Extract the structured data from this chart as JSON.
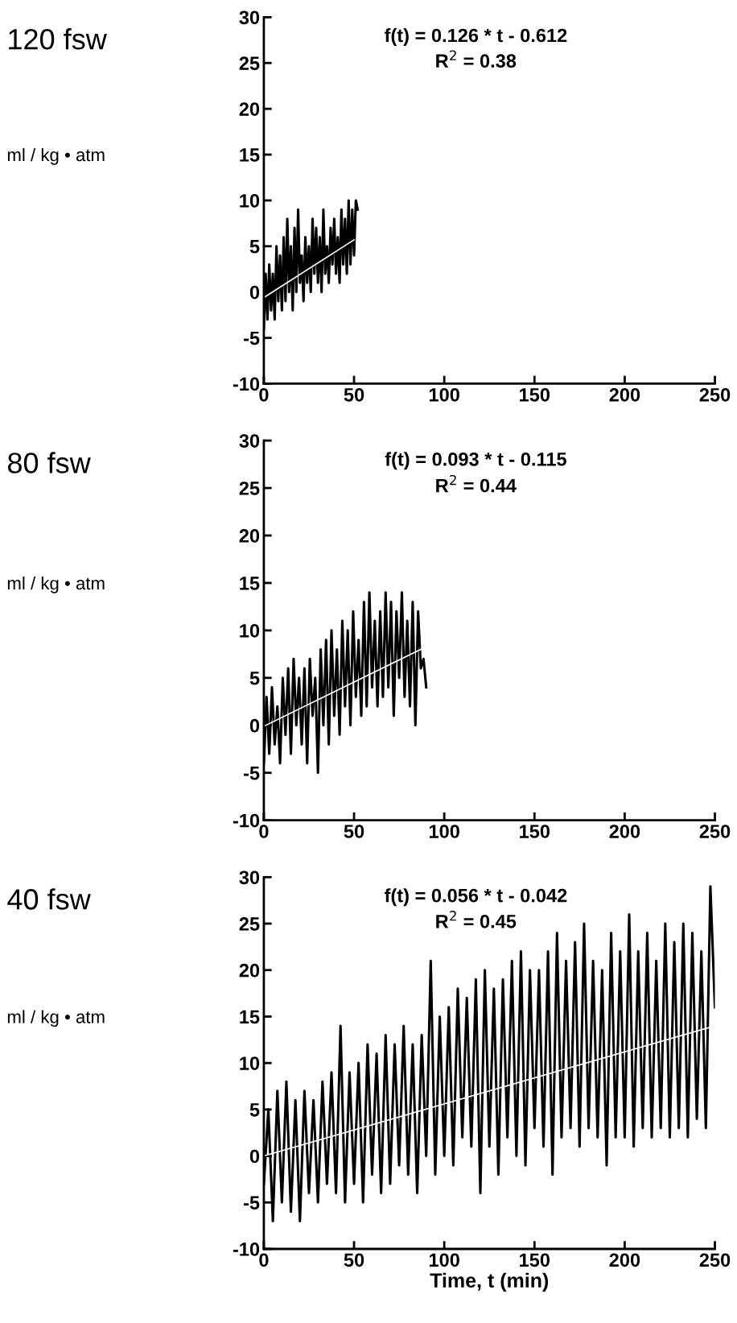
{
  "chart_data": [
    {
      "type": "line",
      "title": "120 fsw",
      "ylabel": "ml / kg • atm",
      "annotations": [
        "f(t) = 0.126 * t - 0.612",
        "R$^{2}$ = 0.38"
      ],
      "xlim": [
        0,
        250
      ],
      "ylim": [
        -10,
        30
      ],
      "xticks": [
        0,
        50,
        100,
        150,
        200,
        250
      ],
      "yticks": [
        -10,
        -5,
        0,
        5,
        10,
        15,
        20,
        25,
        30
      ],
      "grid": false,
      "legend": false,
      "series": [
        {
          "color": "#000000",
          "x": [
            0,
            1,
            2,
            3,
            4,
            5,
            6,
            7,
            8,
            9,
            10,
            11,
            12,
            13,
            14,
            15,
            16,
            17,
            18,
            19,
            20,
            21,
            22,
            23,
            24,
            25,
            26,
            27,
            28,
            29,
            30,
            31,
            32,
            33,
            34,
            35,
            36,
            37,
            38,
            39,
            40,
            41,
            42,
            43,
            44,
            45,
            46,
            47,
            48,
            49,
            50,
            51,
            52
          ],
          "values": [
            -4,
            2,
            -3,
            3,
            -2,
            2,
            -3,
            5,
            -1,
            4,
            -2,
            6,
            -1,
            8,
            0,
            5,
            -2,
            7,
            0,
            9,
            1,
            4,
            -1,
            6,
            1,
            5,
            0,
            8,
            2,
            7,
            1,
            6,
            0,
            9,
            2,
            5,
            1,
            7,
            3,
            8,
            2,
            6,
            1,
            9,
            3,
            8,
            2,
            10,
            3,
            9,
            4,
            10,
            9
          ]
        },
        {
          "color": "#ffffff",
          "x": [
            0,
            50
          ],
          "values": [
            -0.6,
            5.7
          ]
        }
      ]
    },
    {
      "type": "line",
      "title": "80 fsw",
      "ylabel": "ml / kg • atm",
      "annotations": [
        "f(t) = 0.093 * t - 0.115",
        "R$^{2}$ = 0.44"
      ],
      "xlim": [
        0,
        250
      ],
      "ylim": [
        -10,
        30
      ],
      "xticks": [
        0,
        50,
        100,
        150,
        200,
        250
      ],
      "yticks": [
        -10,
        -5,
        0,
        5,
        10,
        15,
        20,
        25,
        30
      ],
      "grid": false,
      "legend": false,
      "series": [
        {
          "color": "#000000",
          "x": [
            0,
            1.5,
            3,
            4.5,
            6,
            7.5,
            9,
            10.5,
            12,
            13.5,
            15,
            16.5,
            18,
            19.5,
            21,
            22.5,
            24,
            25.5,
            27,
            28.5,
            30,
            31.5,
            33,
            34.5,
            36,
            37.5,
            39,
            40.5,
            42,
            43.5,
            45,
            46.5,
            48,
            49.5,
            51,
            52.5,
            54,
            55.5,
            57,
            58.5,
            60,
            61.5,
            63,
            64.5,
            66,
            67.5,
            69,
            70.5,
            72,
            73.5,
            75,
            76.5,
            78,
            79.5,
            81,
            82.5,
            84,
            85.5,
            87,
            88.5,
            90
          ],
          "values": [
            -4,
            3,
            -3,
            4,
            -2,
            2,
            -4,
            5,
            -1,
            6,
            -3,
            7,
            0,
            5,
            -2,
            6,
            -4,
            7,
            1,
            5,
            -5,
            8,
            0,
            9,
            -2,
            10,
            1,
            8,
            -1,
            11,
            2,
            10,
            0,
            12,
            3,
            9,
            1,
            13,
            2,
            14,
            4,
            11,
            2,
            12,
            3,
            14,
            4,
            13,
            1,
            12,
            5,
            14,
            3,
            11,
            2,
            13,
            0,
            12,
            6,
            7,
            4
          ]
        },
        {
          "color": "#ffffff",
          "x": [
            0,
            88
          ],
          "values": [
            -0.1,
            8.1
          ]
        }
      ]
    },
    {
      "type": "line",
      "title": "40 fsw",
      "ylabel": "ml / kg • atm",
      "xlabel": "Time, t (min)",
      "annotations": [
        "f(t) = 0.056 * t - 0.042",
        "R$^{2}$ = 0.45"
      ],
      "xlim": [
        0,
        250
      ],
      "ylim": [
        -10,
        30
      ],
      "xticks": [
        0,
        50,
        100,
        150,
        200,
        250
      ],
      "yticks": [
        -10,
        -5,
        0,
        5,
        10,
        15,
        20,
        25,
        30
      ],
      "grid": false,
      "legend": false,
      "series": [
        {
          "color": "#000000",
          "x": [
            0,
            2.5,
            5,
            7.5,
            10,
            12.5,
            15,
            17.5,
            20,
            22.5,
            25,
            27.5,
            30,
            32.5,
            35,
            37.5,
            40,
            42.5,
            45,
            47.5,
            50,
            52.5,
            55,
            57.5,
            60,
            62.5,
            65,
            67.5,
            70,
            72.5,
            75,
            77.5,
            80,
            82.5,
            85,
            87.5,
            90,
            92.5,
            95,
            97.5,
            100,
            102.5,
            105,
            107.5,
            110,
            112.5,
            115,
            117.5,
            120,
            122.5,
            125,
            127.5,
            130,
            132.5,
            135,
            137.5,
            140,
            142.5,
            145,
            147.5,
            150,
            152.5,
            155,
            157.5,
            160,
            162.5,
            165,
            167.5,
            170,
            172.5,
            175,
            177.5,
            180,
            182.5,
            185,
            187.5,
            190,
            192.5,
            195,
            197.5,
            200,
            202.5,
            205,
            207.5,
            210,
            212.5,
            215,
            217.5,
            220,
            222.5,
            225,
            227.5,
            230,
            232.5,
            235,
            237.5,
            240,
            242.5,
            245,
            247.5,
            250
          ],
          "values": [
            -3,
            5,
            -7,
            7,
            -5,
            8,
            -6,
            6,
            -7,
            7,
            -4,
            6,
            -5,
            8,
            -3,
            9,
            -4,
            14,
            -5,
            9,
            -3,
            10,
            -5,
            12,
            -2,
            11,
            -4,
            13,
            -3,
            12,
            -1,
            14,
            -2,
            12,
            -4,
            13,
            0,
            21,
            -2,
            15,
            0,
            16,
            -1,
            18,
            2,
            17,
            1,
            19,
            -4,
            20,
            1,
            18,
            -2,
            19,
            2,
            21,
            0,
            22,
            -1,
            20,
            3,
            20,
            1,
            22,
            -2,
            24,
            2,
            21,
            3,
            23,
            1,
            25,
            3,
            21,
            2,
            20,
            -1,
            24,
            2,
            22,
            2,
            26,
            1,
            22,
            3,
            24,
            2,
            21,
            3,
            25,
            2,
            23,
            3,
            25,
            2,
            24,
            4,
            22,
            3,
            29,
            16
          ]
        },
        {
          "color": "#ffffff",
          "x": [
            0,
            250
          ],
          "values": [
            0.0,
            14.0
          ]
        }
      ]
    }
  ]
}
